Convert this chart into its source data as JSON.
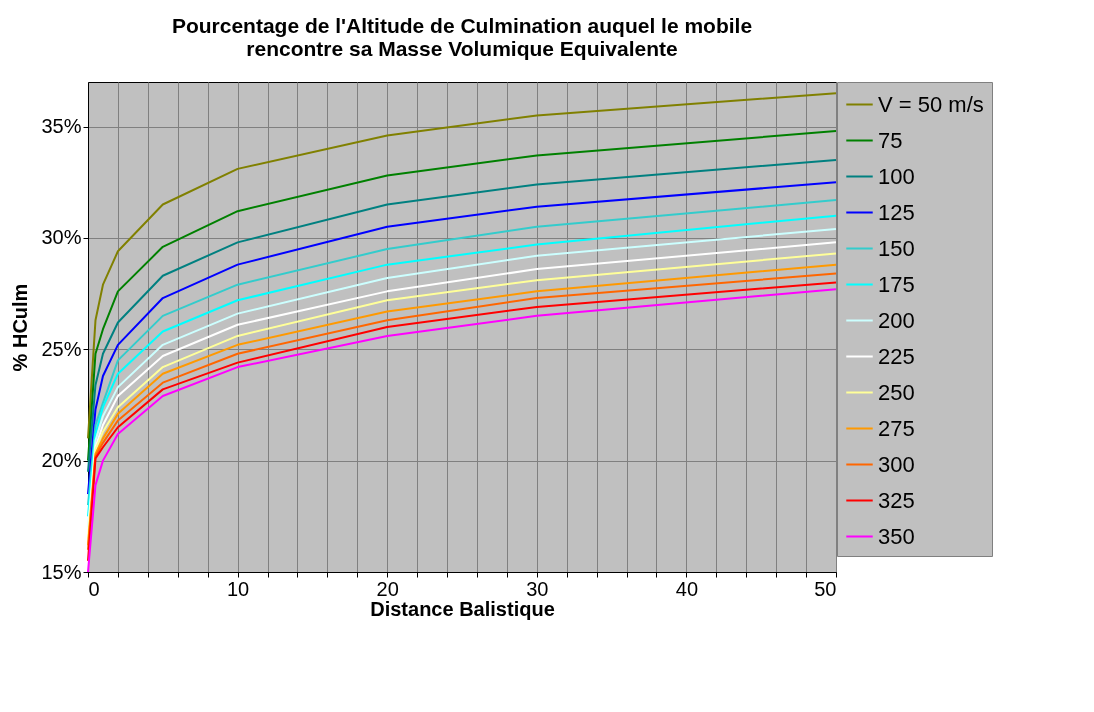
{
  "chart_data": {
    "type": "line",
    "title": "Pourcentage de l'Altitude de Culmination auquel le mobile\nrencontre sa Masse Volumique Equivalente",
    "xlabel": "Distance Balistique",
    "ylabel": "% HCulm",
    "x": [
      0,
      0.5,
      1,
      2,
      5,
      10,
      20,
      30,
      50
    ],
    "series": [
      {
        "name": "V = 50 m/s",
        "color": "#808000",
        "values": [
          21,
          26.3,
          27.9,
          29.4,
          31.5,
          33.1,
          34.6,
          35.5,
          36.5
        ]
      },
      {
        "name": "75",
        "color": "#008000",
        "values": [
          20,
          24.8,
          25.9,
          27.6,
          29.6,
          31.2,
          32.8,
          33.7,
          34.8
        ]
      },
      {
        "name": "100",
        "color": "#008080",
        "values": [
          19.5,
          23.4,
          24.8,
          26.2,
          28.3,
          29.8,
          31.5,
          32.4,
          33.5
        ]
      },
      {
        "name": "125",
        "color": "#0000ff",
        "values": [
          18.5,
          22.3,
          23.8,
          25.2,
          27.3,
          28.8,
          30.5,
          31.4,
          32.5
        ]
      },
      {
        "name": "150",
        "color": "#33cccc",
        "values": [
          18,
          21.6,
          22.6,
          24.5,
          26.5,
          27.9,
          29.5,
          30.5,
          31.7
        ]
      },
      {
        "name": "175",
        "color": "#00ffff",
        "values": [
          17.5,
          21.2,
          22.4,
          23.9,
          25.8,
          27.2,
          28.8,
          29.7,
          31.0
        ]
      },
      {
        "name": "200",
        "color": "#ccffff",
        "values": [
          17,
          20.9,
          22.0,
          23.3,
          25.2,
          26.6,
          28.2,
          29.2,
          30.4
        ]
      },
      {
        "name": "225",
        "color": "#ffffff",
        "values": [
          16.8,
          20.6,
          21.6,
          22.9,
          24.7,
          26.1,
          27.6,
          28.6,
          29.8
        ]
      },
      {
        "name": "250",
        "color": "#ffff99",
        "values": [
          16.5,
          20.5,
          21.3,
          22.4,
          24.2,
          25.6,
          27.2,
          28.1,
          29.3
        ]
      },
      {
        "name": "275",
        "color": "#ff9900",
        "values": [
          16.2,
          20.3,
          21.0,
          22.1,
          23.9,
          25.2,
          26.7,
          27.6,
          28.8
        ]
      },
      {
        "name": "300",
        "color": "#ff6600",
        "values": [
          16,
          20.2,
          20.8,
          21.8,
          23.5,
          24.8,
          26.3,
          27.3,
          28.4
        ]
      },
      {
        "name": "325",
        "color": "#ff0000",
        "values": [
          15.5,
          20.1,
          20.6,
          21.5,
          23.2,
          24.4,
          26.0,
          26.9,
          28.0
        ]
      },
      {
        "name": "350",
        "color": "#ff00ff",
        "values": [
          15,
          18.9,
          20.0,
          21.2,
          22.9,
          24.2,
          25.6,
          26.5,
          27.7
        ]
      }
    ],
    "xlim": [
      0,
      50
    ],
    "xticks": [
      0,
      {
        "value": 2,
        "label": null
      },
      {
        "value": 4,
        "label": null
      },
      {
        "value": 6,
        "label": null
      },
      {
        "value": 8,
        "label": null
      },
      10,
      {
        "value": 12,
        "label": null
      },
      {
        "value": 14,
        "label": null
      },
      {
        "value": 16,
        "label": null
      },
      {
        "value": 18,
        "label": null
      },
      20,
      {
        "value": 22,
        "label": null
      },
      {
        "value": 24,
        "label": null
      },
      {
        "value": 26,
        "label": null
      },
      {
        "value": 28,
        "label": null
      },
      30,
      {
        "value": 32,
        "label": null
      },
      {
        "value": 34,
        "label": null
      },
      {
        "value": 36,
        "label": null
      },
      {
        "value": 38,
        "label": null
      },
      40,
      {
        "value": 42,
        "label": null
      },
      {
        "value": 44,
        "label": null
      },
      {
        "value": 46,
        "label": null
      },
      {
        "value": 48,
        "label": null
      },
      50
    ],
    "ylim": [
      15,
      37
    ],
    "yticks": [
      {
        "value": 15,
        "label": "15%"
      },
      {
        "value": 20,
        "label": "20%"
      },
      {
        "value": 25,
        "label": "25%"
      },
      {
        "value": 30,
        "label": "30%"
      },
      {
        "value": 35,
        "label": "35%"
      }
    ],
    "grid": true,
    "legend": "right",
    "marker": "none",
    "line_style": "solid"
  }
}
